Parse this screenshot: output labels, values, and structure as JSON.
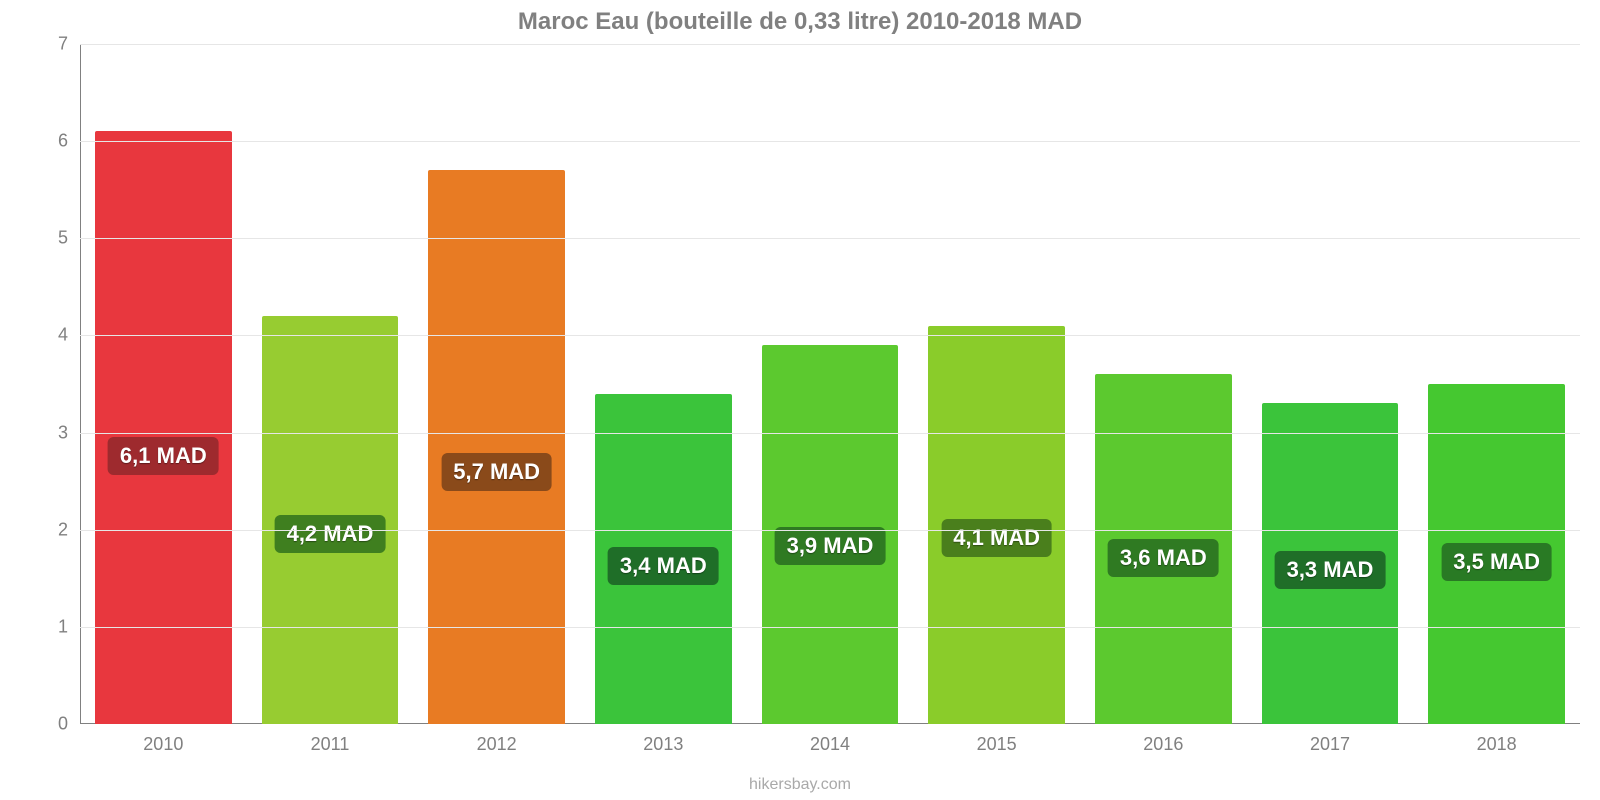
{
  "chart": {
    "type": "bar",
    "title": "Maroc Eau (bouteille de 0,33 litre) 2010-2018 MAD",
    "title_color": "#808080",
    "title_fontsize": 24,
    "title_fontweight": "bold",
    "background_color": "#ffffff",
    "grid_color": "#e6e6e6",
    "axis_color": "#808080",
    "tick_label_color": "#808080",
    "tick_fontsize": 18,
    "ylim": [
      0,
      7
    ],
    "ytick_step": 1,
    "yticks": [
      "0",
      "1",
      "2",
      "3",
      "4",
      "5",
      "6",
      "7"
    ],
    "bar_width_ratio": 0.82,
    "value_badge_fontsize": 22,
    "value_badge_text_color": "#ffffff",
    "value_badge_radius": 6,
    "categories": [
      "2010",
      "2011",
      "2012",
      "2013",
      "2014",
      "2015",
      "2016",
      "2017",
      "2018"
    ],
    "values": [
      6.1,
      4.2,
      5.7,
      3.4,
      3.9,
      4.1,
      3.6,
      3.3,
      3.5
    ],
    "value_labels": [
      "6,1 MAD",
      "4,2 MAD",
      "5,7 MAD",
      "3,4 MAD",
      "3,9 MAD",
      "4,1 MAD",
      "3,6 MAD",
      "3,3 MAD",
      "3,5 MAD"
    ],
    "bar_colors": [
      "#e8373e",
      "#97cc31",
      "#e87b23",
      "#3bc43b",
      "#5cc92f",
      "#8acc2a",
      "#5cc92f",
      "#3bc43b",
      "#45c830"
    ],
    "badge_colors": [
      "#9e2a2e",
      "#3f7f1f",
      "#8a4a1a",
      "#1f6e28",
      "#2f7a22",
      "#4a7f1c",
      "#2f7a22",
      "#1f6e28",
      "#297a24"
    ],
    "credit": "hikersbay.com",
    "credit_color": "#a9a9a9",
    "credit_fontsize": 16
  }
}
